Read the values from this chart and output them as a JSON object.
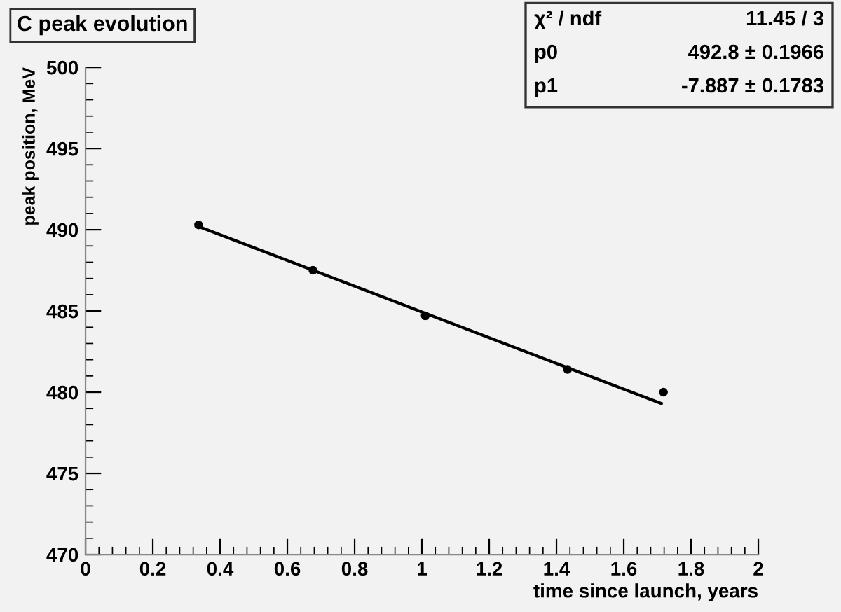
{
  "chart_data": {
    "type": "scatter",
    "title": "C peak evolution",
    "xlabel": "time since launch, years",
    "ylabel": "peak position, MeV",
    "series": [
      {
        "color": "#000000",
        "x": [
          0.336,
          0.676,
          1.01,
          1.433,
          1.718
        ],
        "values": [
          490.3,
          487.5,
          484.7,
          481.4,
          480.0
        ],
        "marker": "circle"
      },
      {
        "type": "line",
        "color": "#000000",
        "x": [
          0.336,
          1.712
        ],
        "values": [
          490.2,
          479.3
        ],
        "line_style": "solid"
      }
    ],
    "xlim": [
      0,
      2
    ],
    "xticks": [
      0,
      0.2,
      0.4,
      0.6,
      0.8,
      1,
      1.2,
      1.4,
      1.6,
      1.8,
      2
    ],
    "ylim": [
      470,
      500
    ],
    "yticks": [
      470,
      475,
      480,
      485,
      490,
      495,
      500
    ],
    "annotations": [
      "χ² / ndf",
      "11.45 / 3",
      "p0",
      "492.8 ± 0.1966",
      "p1",
      "-7.887 ± 0.1783"
    ],
    "grid": false,
    "legend": false
  }
}
